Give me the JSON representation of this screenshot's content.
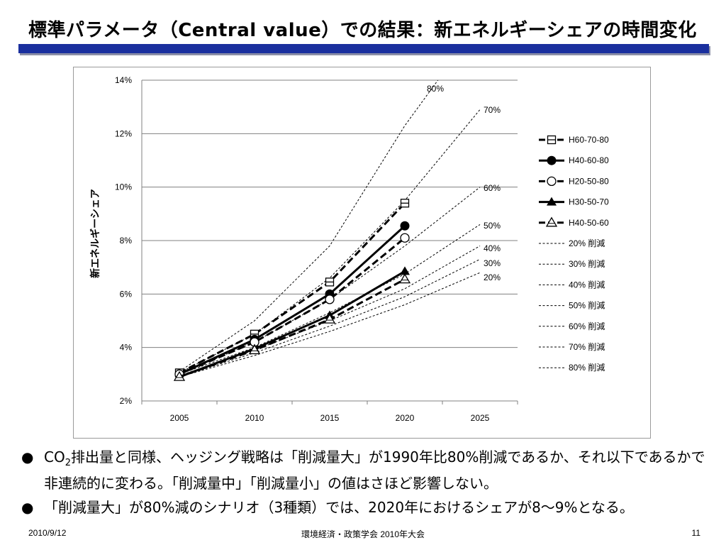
{
  "slide": {
    "title": "標準パラメータ（Central value）での結果：新エネルギーシェアの時間変化",
    "footer_left": "2010/9/12",
    "footer_center": "環境経済・政策学会 2010年大会",
    "footer_right": "11",
    "bullets": [
      {
        "pre": "CO",
        "sub": "2",
        "post": "排出量と同様、ヘッジング戦略は「削減量大」が1990年比80%削減であるか、それ以下であるかで非連続的に変わる。「削減量中」「削減量小」の値はさほど影響しない。"
      },
      {
        "pre": "「削減量大」が80%減のシナリオ（3種類）では、2020年におけるシェアが8～9%となる。",
        "sub": "",
        "post": ""
      }
    ],
    "bullet_symbol": "●"
  },
  "chart_data": {
    "type": "line",
    "title": "",
    "xlabel": "",
    "ylabel": "新エネルギーシェア",
    "x": [
      2005,
      2010,
      2015,
      2020,
      2025
    ],
    "x_tick_labels": [
      "2005",
      "2010",
      "2015",
      "2020",
      "2025"
    ],
    "ylim": [
      2,
      14
    ],
    "y_ticks": [
      2,
      4,
      6,
      8,
      10,
      12,
      14
    ],
    "y_tick_labels": [
      "2%",
      "4%",
      "6%",
      "8%",
      "10%",
      "12%",
      "14%"
    ],
    "grid": "horizontal",
    "legend_position": "right",
    "series": [
      {
        "name": "H60-70-80",
        "x": [
          2005,
          2010,
          2015,
          2020
        ],
        "y": [
          3.05,
          4.5,
          6.45,
          9.4
        ],
        "style": "dashed-bold",
        "marker": "square-half"
      },
      {
        "name": "H40-60-80",
        "x": [
          2005,
          2010,
          2015,
          2020
        ],
        "y": [
          3.0,
          4.3,
          6.0,
          8.55
        ],
        "style": "solid-bold",
        "marker": "circle-filled"
      },
      {
        "name": "H20-50-80",
        "x": [
          2005,
          2010,
          2015,
          2020
        ],
        "y": [
          3.0,
          4.2,
          5.8,
          8.1
        ],
        "style": "dashed-bold",
        "marker": "circle-open"
      },
      {
        "name": "H30-50-70",
        "x": [
          2005,
          2010,
          2015,
          2020
        ],
        "y": [
          2.9,
          3.95,
          5.2,
          6.85
        ],
        "style": "solid-bold",
        "marker": "triangle-filled"
      },
      {
        "name": "H40-50-60",
        "x": [
          2005,
          2010,
          2015,
          2020
        ],
        "y": [
          2.9,
          3.9,
          5.05,
          6.55
        ],
        "style": "dashed-bold",
        "marker": "triangle-open"
      },
      {
        "name": "20% 削減",
        "x": [
          2005,
          2010,
          2015,
          2020,
          2025
        ],
        "y": [
          2.9,
          3.7,
          4.6,
          5.6,
          6.8
        ],
        "style": "dotted-thin",
        "end_label": "20%"
      },
      {
        "name": "30% 削減",
        "x": [
          2005,
          2010,
          2015,
          2020,
          2025
        ],
        "y": [
          2.9,
          3.8,
          4.8,
          5.9,
          7.3
        ],
        "style": "dotted-thin",
        "end_label": "30%"
      },
      {
        "name": "40% 削減",
        "x": [
          2005,
          2010,
          2015,
          2020,
          2025
        ],
        "y": [
          2.95,
          3.9,
          5.0,
          6.2,
          7.8
        ],
        "style": "dotted-thin",
        "end_label": "40%"
      },
      {
        "name": "50% 削減",
        "x": [
          2005,
          2010,
          2015,
          2020,
          2025
        ],
        "y": [
          3.0,
          4.0,
          5.3,
          6.75,
          8.6
        ],
        "style": "dotted-thin",
        "end_label": "50%"
      },
      {
        "name": "60% 削減",
        "x": [
          2005,
          2010,
          2015,
          2020,
          2025
        ],
        "y": [
          3.0,
          4.2,
          5.8,
          7.8,
          10.0
        ],
        "style": "dotted-thin",
        "end_label": "60%"
      },
      {
        "name": "70% 削減",
        "x": [
          2005,
          2010,
          2015,
          2020,
          2025
        ],
        "y": [
          3.05,
          4.5,
          6.6,
          9.5,
          12.9
        ],
        "style": "dotted-thin",
        "end_label": "70%"
      },
      {
        "name": "80% 削減",
        "x": [
          2005,
          2010,
          2015,
          2020,
          2022.2
        ],
        "y": [
          3.1,
          5.0,
          7.8,
          12.3,
          14.0
        ],
        "style": "dotted-thin",
        "end_label": "80%"
      }
    ]
  }
}
